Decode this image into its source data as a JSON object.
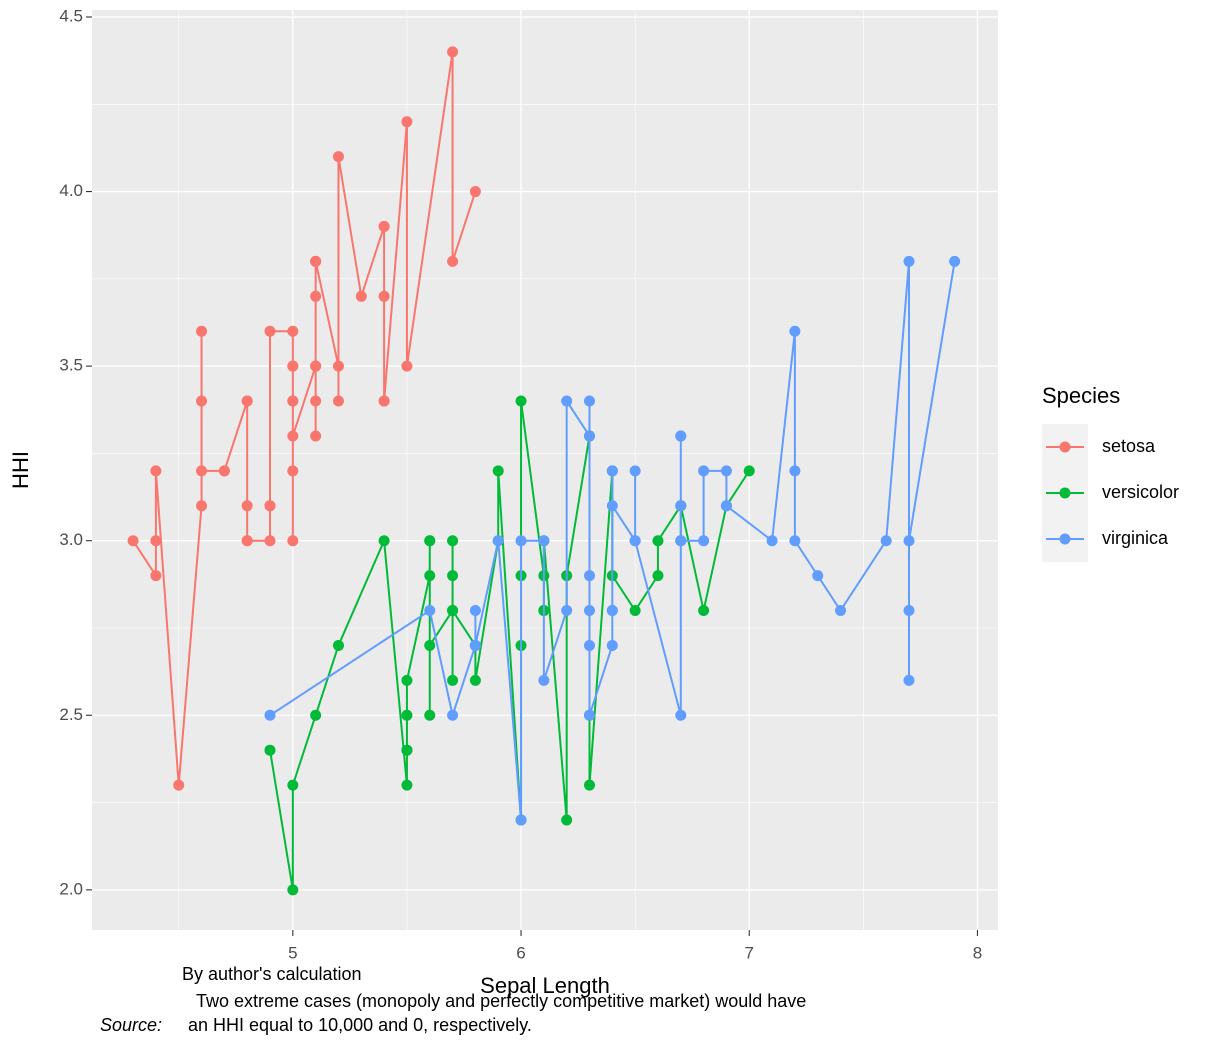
{
  "chart_data": {
    "type": "line",
    "x_label": "Sepal Length",
    "y_label": "HHI",
    "legend_title": "Species",
    "legend_position": "right",
    "grid": true,
    "xlim": [
      4.12,
      8.09
    ],
    "ylim": [
      1.885,
      4.52
    ],
    "xticks": [
      5,
      6,
      7,
      8
    ],
    "yticks": [
      {
        "value": 2.0,
        "label": "2.0"
      },
      {
        "value": 2.5,
        "label": "2.5"
      },
      {
        "value": 3.0,
        "label": "3.0"
      },
      {
        "value": 3.5,
        "label": "3.5"
      },
      {
        "value": 4.0,
        "label": "4.0"
      },
      {
        "value": 4.5,
        "label": "4.5"
      }
    ],
    "series": [
      {
        "name": "setosa",
        "color": "#F8766D",
        "x": [
          4.3,
          4.4,
          4.4,
          4.4,
          4.5,
          4.6,
          4.6,
          4.6,
          4.6,
          4.7,
          4.7,
          4.8,
          4.8,
          4.8,
          4.8,
          4.8,
          4.9,
          4.9,
          4.9,
          4.9,
          5.0,
          5.0,
          5.0,
          5.0,
          5.0,
          5.0,
          5.0,
          5.0,
          5.1,
          5.1,
          5.1,
          5.1,
          5.1,
          5.1,
          5.1,
          5.1,
          5.2,
          5.2,
          5.2,
          5.3,
          5.4,
          5.4,
          5.4,
          5.4,
          5.4,
          5.5,
          5.5,
          5.7,
          5.7,
          5.8
        ],
        "values": [
          3.0,
          2.9,
          3.0,
          3.2,
          2.3,
          3.1,
          3.4,
          3.6,
          3.2,
          3.2,
          3.2,
          3.4,
          3.0,
          3.4,
          3.1,
          3.0,
          3.0,
          3.1,
          3.1,
          3.6,
          3.6,
          3.4,
          3.0,
          3.4,
          3.2,
          3.5,
          3.5,
          3.3,
          3.5,
          3.5,
          3.8,
          3.7,
          3.3,
          3.4,
          3.8,
          3.8,
          3.5,
          3.4,
          4.1,
          3.7,
          3.9,
          3.7,
          3.9,
          3.4,
          3.4,
          4.2,
          3.5,
          4.4,
          3.8,
          4.0
        ]
      },
      {
        "name": "versicolor",
        "color": "#00BA38",
        "x": [
          4.9,
          5.0,
          5.0,
          5.1,
          5.2,
          5.4,
          5.5,
          5.5,
          5.5,
          5.5,
          5.5,
          5.6,
          5.6,
          5.6,
          5.6,
          5.6,
          5.7,
          5.7,
          5.7,
          5.7,
          5.7,
          5.8,
          5.8,
          5.8,
          5.9,
          5.9,
          6.0,
          6.0,
          6.0,
          6.0,
          6.1,
          6.1,
          6.1,
          6.1,
          6.2,
          6.2,
          6.3,
          6.3,
          6.3,
          6.4,
          6.4,
          6.5,
          6.6,
          6.6,
          6.7,
          6.7,
          6.7,
          6.8,
          6.9,
          7.0
        ],
        "values": [
          2.4,
          2.0,
          2.3,
          2.5,
          2.7,
          3.0,
          2.3,
          2.4,
          2.4,
          2.5,
          2.6,
          2.9,
          3.0,
          2.5,
          3.0,
          2.7,
          2.8,
          2.6,
          3.0,
          2.9,
          2.8,
          2.7,
          2.7,
          2.6,
          3.0,
          3.2,
          2.2,
          2.9,
          2.7,
          3.4,
          2.9,
          2.8,
          2.8,
          3.0,
          2.2,
          2.9,
          3.3,
          2.5,
          2.3,
          3.2,
          2.9,
          2.8,
          2.9,
          3.0,
          3.1,
          3.0,
          3.1,
          2.8,
          3.1,
          3.2
        ]
      },
      {
        "name": "virginica",
        "color": "#619CFF",
        "x": [
          4.9,
          5.6,
          5.7,
          5.8,
          5.8,
          5.8,
          5.9,
          6.0,
          6.0,
          6.1,
          6.1,
          6.2,
          6.2,
          6.3,
          6.3,
          6.3,
          6.3,
          6.3,
          6.3,
          6.4,
          6.4,
          6.4,
          6.4,
          6.4,
          6.5,
          6.5,
          6.5,
          6.5,
          6.7,
          6.7,
          6.7,
          6.7,
          6.7,
          6.8,
          6.8,
          6.9,
          6.9,
          6.9,
          7.1,
          7.2,
          7.2,
          7.2,
          7.3,
          7.4,
          7.6,
          7.7,
          7.7,
          7.7,
          7.7,
          7.9
        ],
        "values": [
          2.5,
          2.8,
          2.5,
          2.7,
          2.8,
          2.7,
          3.0,
          2.2,
          3.0,
          3.0,
          2.6,
          2.8,
          3.4,
          3.3,
          2.9,
          2.7,
          2.8,
          3.4,
          2.5,
          2.7,
          3.2,
          2.8,
          2.8,
          3.1,
          3.0,
          3.2,
          3.0,
          3.0,
          2.5,
          3.3,
          3.1,
          3.3,
          3.0,
          3.0,
          3.2,
          3.2,
          3.1,
          3.1,
          3.0,
          3.6,
          3.2,
          3.0,
          2.9,
          2.8,
          3.0,
          3.8,
          2.6,
          2.8,
          3.0,
          3.8
        ]
      }
    ],
    "caption": [
      "By author's calculation",
      "Two extreme cases (monopoly and perfectly competitive market) would have",
      "an HHI equal to 10,000 and 0, respectively."
    ],
    "caption_label": "Source:"
  }
}
